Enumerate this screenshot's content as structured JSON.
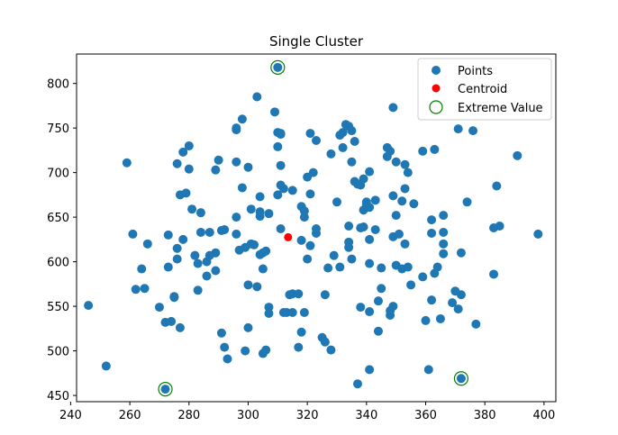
{
  "chart_data": {
    "type": "scatter",
    "title": "Single Cluster",
    "xlabel": "",
    "ylabel": "",
    "xlim": [
      242,
      404
    ],
    "ylim": [
      443,
      833
    ],
    "xticks": [
      240,
      260,
      280,
      300,
      320,
      340,
      360,
      380,
      400
    ],
    "yticks": [
      450,
      500,
      550,
      600,
      650,
      700,
      750,
      800
    ],
    "grid": false,
    "legend_position": "top-right",
    "colors": {
      "points": "#1f77b4",
      "centroid": "#ff0000",
      "extreme": "#008000"
    },
    "series": [
      {
        "name": "Points",
        "marker": "filled-circle",
        "points": [
          [
            246,
            551
          ],
          [
            252,
            483
          ],
          [
            259,
            711
          ],
          [
            261,
            631
          ],
          [
            262,
            569
          ],
          [
            264,
            592
          ],
          [
            265,
            570
          ],
          [
            266,
            620
          ],
          [
            270,
            549
          ],
          [
            272,
            532
          ],
          [
            272,
            457
          ],
          [
            273,
            594
          ],
          [
            273,
            630
          ],
          [
            274,
            533
          ],
          [
            275,
            560
          ],
          [
            275,
            561
          ],
          [
            276,
            615
          ],
          [
            276,
            603
          ],
          [
            276,
            710
          ],
          [
            277,
            526
          ],
          [
            277,
            675
          ],
          [
            278,
            625
          ],
          [
            278,
            723
          ],
          [
            279,
            677
          ],
          [
            280,
            704
          ],
          [
            280,
            730
          ],
          [
            281,
            659
          ],
          [
            282,
            607
          ],
          [
            283,
            568
          ],
          [
            283,
            598
          ],
          [
            284,
            655
          ],
          [
            284,
            633
          ],
          [
            286,
            584
          ],
          [
            286,
            600
          ],
          [
            287,
            607
          ],
          [
            287,
            633
          ],
          [
            289,
            590
          ],
          [
            289,
            703
          ],
          [
            289,
            610
          ],
          [
            290,
            714
          ],
          [
            291,
            520
          ],
          [
            291,
            635
          ],
          [
            292,
            504
          ],
          [
            292,
            636
          ],
          [
            293,
            491
          ],
          [
            296,
            712
          ],
          [
            296,
            750
          ],
          [
            296,
            748
          ],
          [
            296,
            631
          ],
          [
            296,
            650
          ],
          [
            297,
            613
          ],
          [
            298,
            760
          ],
          [
            298,
            683
          ],
          [
            299,
            616
          ],
          [
            299,
            500
          ],
          [
            300,
            706
          ],
          [
            300,
            526
          ],
          [
            300,
            574
          ],
          [
            301,
            620
          ],
          [
            301,
            659
          ],
          [
            302,
            619
          ],
          [
            303,
            785
          ],
          [
            303,
            572
          ],
          [
            304,
            608
          ],
          [
            304,
            673
          ],
          [
            304,
            651
          ],
          [
            304,
            656
          ],
          [
            305,
            497
          ],
          [
            305,
            592
          ],
          [
            305,
            610
          ],
          [
            306,
            612
          ],
          [
            306,
            501
          ],
          [
            307,
            654
          ],
          [
            307,
            549
          ],
          [
            307,
            542
          ],
          [
            309,
            768
          ],
          [
            310,
            818
          ],
          [
            310,
            745
          ],
          [
            310,
            729
          ],
          [
            310,
            675
          ],
          [
            311,
            743
          ],
          [
            311,
            708
          ],
          [
            311,
            686
          ],
          [
            311,
            637
          ],
          [
            311,
            744
          ],
          [
            312,
            682
          ],
          [
            312,
            543
          ],
          [
            313,
            543
          ],
          [
            314,
            563
          ],
          [
            315,
            543
          ],
          [
            315,
            680
          ],
          [
            315,
            564
          ],
          [
            317,
            504
          ],
          [
            317,
            564
          ],
          [
            318,
            662
          ],
          [
            318,
            624
          ],
          [
            318,
            521
          ],
          [
            319,
            543
          ],
          [
            319,
            657
          ],
          [
            319,
            650
          ],
          [
            320,
            695
          ],
          [
            320,
            603
          ],
          [
            321,
            618
          ],
          [
            321,
            676
          ],
          [
            321,
            744
          ],
          [
            322,
            700
          ],
          [
            323,
            637
          ],
          [
            323,
            632
          ],
          [
            323,
            736
          ],
          [
            325,
            515
          ],
          [
            326,
            510
          ],
          [
            326,
            563
          ],
          [
            327,
            593
          ],
          [
            328,
            501
          ],
          [
            328,
            721
          ],
          [
            329,
            607
          ],
          [
            330,
            667
          ],
          [
            331,
            742
          ],
          [
            331,
            594
          ],
          [
            332,
            745
          ],
          [
            332,
            728
          ],
          [
            333,
            754
          ],
          [
            334,
            640
          ],
          [
            334,
            752
          ],
          [
            334,
            622
          ],
          [
            334,
            616
          ],
          [
            335,
            712
          ],
          [
            335,
            603
          ],
          [
            335,
            747
          ],
          [
            336,
            735
          ],
          [
            336,
            690
          ],
          [
            337,
            687
          ],
          [
            337,
            463
          ],
          [
            338,
            686
          ],
          [
            338,
            549
          ],
          [
            338,
            638
          ],
          [
            339,
            639
          ],
          [
            339,
            693
          ],
          [
            339,
            658
          ],
          [
            340,
            664
          ],
          [
            340,
            667
          ],
          [
            341,
            701
          ],
          [
            341,
            661
          ],
          [
            341,
            625
          ],
          [
            341,
            598
          ],
          [
            341,
            544
          ],
          [
            341,
            479
          ],
          [
            343,
            669
          ],
          [
            343,
            636
          ],
          [
            344,
            556
          ],
          [
            344,
            522
          ],
          [
            345,
            570
          ],
          [
            345,
            593
          ],
          [
            347,
            728
          ],
          [
            347,
            718
          ],
          [
            348,
            724
          ],
          [
            348,
            540
          ],
          [
            348,
            545
          ],
          [
            349,
            773
          ],
          [
            349,
            628
          ],
          [
            349,
            674
          ],
          [
            349,
            550
          ],
          [
            350,
            712
          ],
          [
            350,
            596
          ],
          [
            350,
            652
          ],
          [
            351,
            631
          ],
          [
            352,
            592
          ],
          [
            352,
            668
          ],
          [
            353,
            709
          ],
          [
            353,
            682
          ],
          [
            353,
            620
          ],
          [
            354,
            700
          ],
          [
            354,
            594
          ],
          [
            355,
            574
          ],
          [
            356,
            665
          ],
          [
            359,
            583
          ],
          [
            359,
            724
          ],
          [
            360,
            534
          ],
          [
            361,
            479
          ],
          [
            362,
            632
          ],
          [
            362,
            557
          ],
          [
            362,
            647
          ],
          [
            363,
            587
          ],
          [
            363,
            726
          ],
          [
            364,
            594
          ],
          [
            365,
            536
          ],
          [
            366,
            652
          ],
          [
            366,
            620
          ],
          [
            366,
            633
          ],
          [
            366,
            609
          ],
          [
            369,
            554
          ],
          [
            370,
            567
          ],
          [
            371,
            749
          ],
          [
            371,
            547
          ],
          [
            372,
            563
          ],
          [
            372,
            469
          ],
          [
            372,
            610
          ],
          [
            374,
            667
          ],
          [
            376,
            747
          ],
          [
            377,
            530
          ],
          [
            383,
            638
          ],
          [
            383,
            586
          ],
          [
            384,
            685
          ],
          [
            385,
            640
          ],
          [
            391,
            719
          ],
          [
            398,
            631
          ]
        ]
      },
      {
        "name": "Centroid",
        "marker": "filled-circle",
        "points": [
          [
            313.5,
            627.5
          ]
        ]
      },
      {
        "name": "Extreme Value",
        "marker": "hollow-circle",
        "points": [
          [
            310,
            818
          ],
          [
            272,
            457
          ],
          [
            372,
            469
          ]
        ]
      }
    ]
  }
}
